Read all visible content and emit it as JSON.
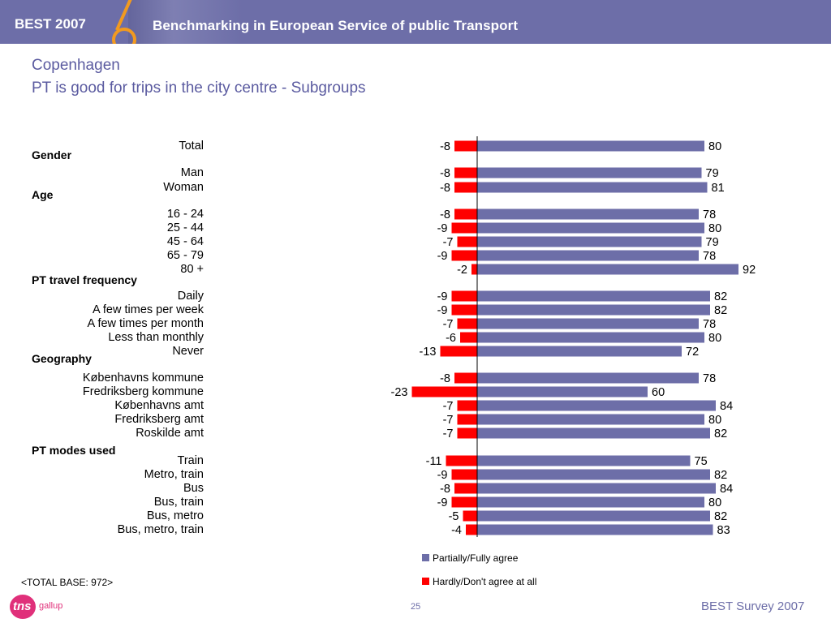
{
  "header": {
    "brand": "BEST 2007",
    "banner_title": "Benchmarking in European Service of public Transport"
  },
  "slide": {
    "city": "Copenhagen",
    "subtitle": "PT is good for trips in the city centre - Subgroups"
  },
  "colors": {
    "agree": "#6d6ea8",
    "disagree": "#ff0000",
    "header_bg": "#6d6ea8",
    "accent": "#f29a1f",
    "logo": "#e0307a"
  },
  "groups": [
    {
      "label": "Gender"
    },
    {
      "label": "Age"
    },
    {
      "label": "PT travel frequency"
    },
    {
      "label": "Geography"
    },
    {
      "label": "PT modes used"
    }
  ],
  "chart_data": {
    "type": "bar",
    "orientation": "horizontal-diverging",
    "categories": [
      "Total",
      "Man",
      "Woman",
      "16 - 24",
      "25 - 44",
      "45 - 64",
      "65 - 79",
      "80 +",
      "Daily",
      "A few times per week",
      "A few times per month",
      "Less than monthly",
      "Never",
      "Københavns kommune",
      "Fredriksberg kommune",
      "Københavns amt",
      "Fredriksberg amt",
      "Roskilde amt",
      "Train",
      "Metro, train",
      "Bus",
      "Bus, train",
      "Bus, metro",
      "Bus, metro, train"
    ],
    "series": [
      {
        "name": "Partially/Fully agree",
        "values": [
          80,
          79,
          81,
          78,
          80,
          79,
          78,
          92,
          82,
          82,
          78,
          80,
          72,
          78,
          60,
          84,
          80,
          82,
          75,
          82,
          84,
          80,
          82,
          83
        ]
      },
      {
        "name": "Hardly/Don't agree at all",
        "values": [
          -8,
          -8,
          -8,
          -8,
          -9,
          -7,
          -9,
          -2,
          -9,
          -9,
          -7,
          -6,
          -13,
          -8,
          -23,
          -7,
          -7,
          -7,
          -11,
          -9,
          -8,
          -9,
          -5,
          -4
        ]
      }
    ],
    "legend_position": "bottom-right",
    "grid": false
  },
  "footer": {
    "base_note": "<TOTAL BASE: 972>",
    "page_number": "25",
    "survey": "BEST Survey 2007",
    "logo_mark": "tns",
    "logo_word": "gallup"
  }
}
